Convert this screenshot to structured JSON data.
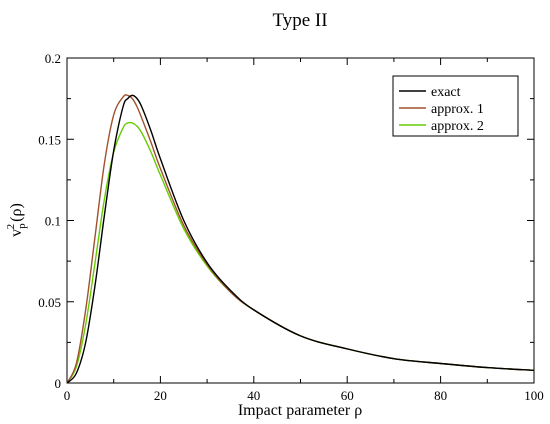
{
  "chart_data": {
    "type": "line",
    "title": "Type II",
    "xlabel": "Impact parameter ρ",
    "ylabel": {
      "base": "v",
      "superscript": "2",
      "subscript": "p",
      "suffix": "(ρ)"
    },
    "xlim": [
      0,
      100
    ],
    "ylim": [
      0,
      0.2
    ],
    "xticks": [
      0,
      20,
      40,
      60,
      80,
      100
    ],
    "xtick_labels": [
      "0",
      "20",
      "40",
      "60",
      "80",
      "100"
    ],
    "yticks": [
      0,
      0.05,
      0.1,
      0.15,
      0.2
    ],
    "ytick_labels": [
      "0",
      "0.05",
      "0.1",
      "0.15",
      "0.2"
    ],
    "grid": false,
    "legend_position": "top-right",
    "series": [
      {
        "name": "exact",
        "color": "#000000",
        "x": [
          0,
          2,
          4,
          6,
          8,
          10,
          12,
          13,
          14,
          15,
          16,
          18,
          20,
          25,
          30,
          35,
          40,
          50,
          60,
          70,
          80,
          90,
          100
        ],
        "y": [
          0,
          0.006,
          0.025,
          0.06,
          0.103,
          0.143,
          0.17,
          0.175,
          0.177,
          0.175,
          0.17,
          0.155,
          0.138,
          0.1,
          0.074,
          0.057,
          0.045,
          0.029,
          0.021,
          0.015,
          0.012,
          0.0095,
          0.0078
        ]
      },
      {
        "name": "approx. 1",
        "color": "#a0522d",
        "x": [
          0,
          2,
          4,
          6,
          8,
          10,
          12,
          13,
          14,
          15,
          16,
          18,
          20,
          25,
          30,
          35,
          40,
          50,
          60,
          70,
          80,
          90,
          100
        ],
        "y": [
          0,
          0.012,
          0.045,
          0.09,
          0.135,
          0.165,
          0.176,
          0.177,
          0.175,
          0.17,
          0.163,
          0.148,
          0.132,
          0.097,
          0.073,
          0.056,
          0.045,
          0.029,
          0.021,
          0.015,
          0.012,
          0.0095,
          0.0078
        ]
      },
      {
        "name": "approx. 2",
        "color": "#66cc00",
        "x": [
          0,
          2,
          4,
          6,
          8,
          10,
          12,
          13,
          14,
          15,
          16,
          18,
          20,
          25,
          30,
          35,
          40,
          50,
          60,
          70,
          80,
          90,
          100
        ],
        "y": [
          0,
          0.01,
          0.036,
          0.074,
          0.113,
          0.142,
          0.157,
          0.16,
          0.16,
          0.158,
          0.154,
          0.142,
          0.128,
          0.095,
          0.072,
          0.056,
          0.045,
          0.029,
          0.021,
          0.015,
          0.012,
          0.0095,
          0.0078
        ]
      }
    ]
  }
}
